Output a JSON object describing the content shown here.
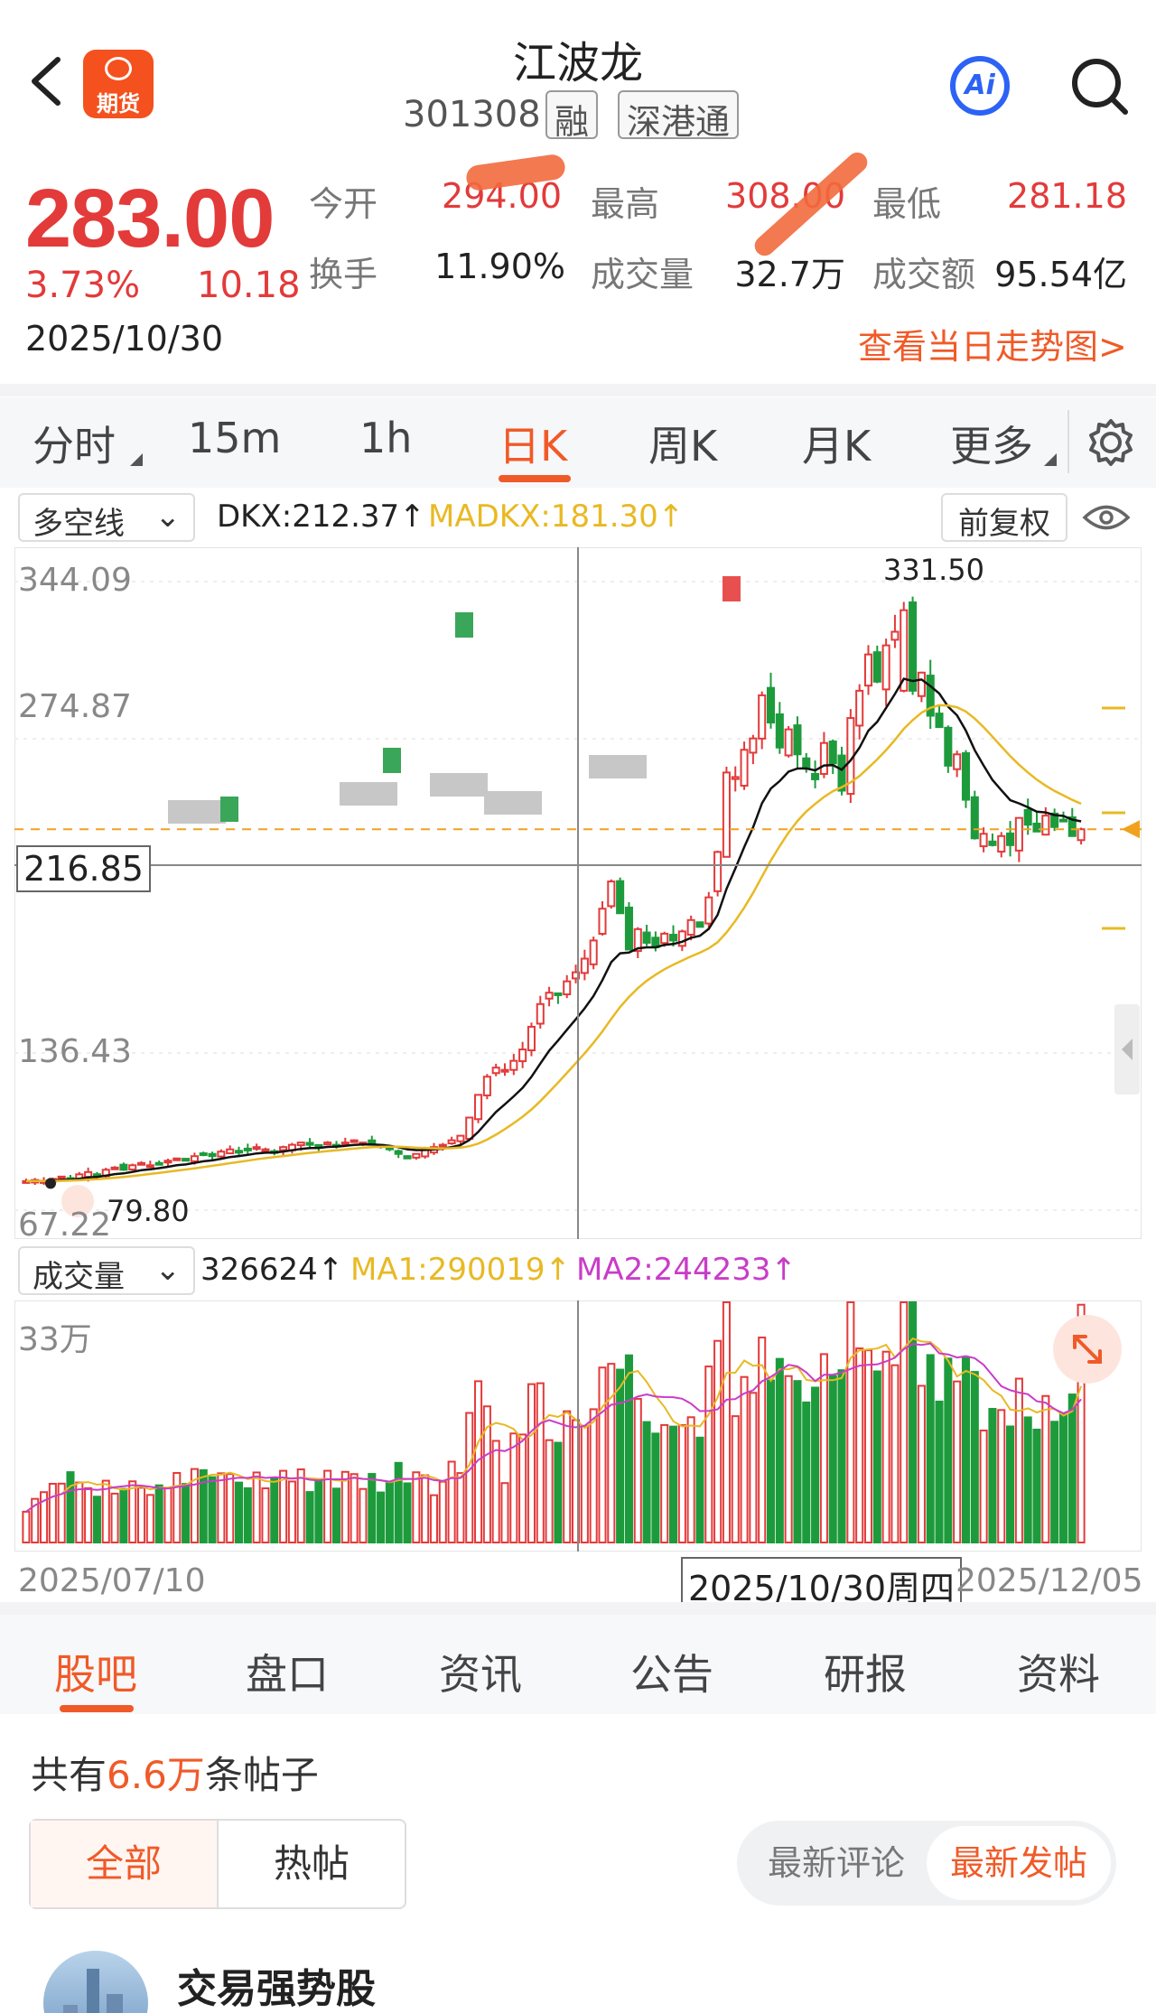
{
  "header": {
    "stock_name": "江波龙",
    "stock_code": "301308",
    "tags": [
      "融",
      "深港通"
    ],
    "logo_text": "期货",
    "ai_label": "Ai",
    "icons": {
      "back": "chevron-left-icon",
      "search": "search-icon",
      "ai": "ai-assistant-icon"
    }
  },
  "quote": {
    "price": "283.00",
    "change_pct": "3.73%",
    "change_amt": "10.18",
    "date": "2025/10/30",
    "fields": [
      {
        "label": "今开",
        "value": "294.00",
        "color": "#e33a3a"
      },
      {
        "label": "最高",
        "value": "308.00",
        "color": "#e33a3a"
      },
      {
        "label": "最低",
        "value": "281.18",
        "color": "#e33a3a"
      },
      {
        "label": "换手",
        "value": "11.90%",
        "color": "#222222"
      },
      {
        "label": "成交量",
        "value": "32.7万",
        "color": "#222222"
      },
      {
        "label": "成交额",
        "value": "95.54亿",
        "color": "#222222"
      }
    ],
    "intraday_link": "查看当日走势图>"
  },
  "period_tabs": {
    "items": [
      "分时",
      "15m",
      "1h",
      "日K",
      "周K",
      "月K",
      "更多"
    ],
    "active": "日K"
  },
  "kline": {
    "indicator_select": "多空线",
    "dkx_text": "DKX:212.37↑",
    "madkx_text": "MADKX:181.30↑",
    "adjust_button": "前复权",
    "axis_labels": [
      "344.09",
      "274.87",
      "136.43",
      "67.22"
    ],
    "crosshair_price": "216.85",
    "high_marker": "331.50",
    "low_marker": "79.80"
  },
  "volume": {
    "indicator_select": "成交量",
    "vol_text": "326624↑",
    "ma1_text": "MA1:290019↑",
    "ma2_text": "MA2:244233↑",
    "axis_max": "33万",
    "date_start": "2025/07/10",
    "date_cursor": "2025/10/30周四",
    "date_end": "2025/12/05"
  },
  "chart_data": {
    "type": "candlestick",
    "date_range": [
      "2025/07/10",
      "2025/12/05"
    ],
    "y_ticks": [
      344.09,
      274.87,
      136.43,
      67.22
    ],
    "dkx_last": 212.37,
    "madkx_last": 181.3,
    "period_high": 331.5,
    "period_low": 79.8,
    "closes": [
      80,
      80.5,
      80,
      81,
      82,
      81,
      83,
      84,
      83,
      85,
      86,
      85,
      87,
      88,
      87,
      88,
      89,
      90,
      89,
      91,
      92,
      91,
      93,
      94,
      93,
      94,
      95,
      94,
      93,
      95,
      96,
      97,
      96,
      95,
      97,
      96,
      97,
      98,
      97,
      96,
      95,
      94,
      92,
      90,
      92,
      94,
      95,
      96,
      98,
      100,
      108,
      118,
      126,
      130,
      129,
      133,
      138,
      148,
      158,
      163,
      162,
      168,
      172,
      178,
      186,
      200,
      212,
      198,
      182,
      191,
      185,
      183,
      189,
      186,
      190,
      195,
      192,
      205,
      225,
      260,
      258,
      270,
      275,
      294,
      282,
      271,
      279,
      268,
      262,
      257,
      273,
      264,
      252,
      284,
      296,
      312,
      300,
      316,
      322,
      331.5,
      296,
      304,
      285,
      280,
      263,
      268,
      248,
      231,
      233,
      228,
      232,
      228,
      240,
      237,
      234,
      241,
      236,
      239,
      232,
      235
    ],
    "volume_ma1_last": 290019,
    "volume_ma2_last": 244233,
    "volume_last": 326624,
    "volume_max_label": "33万"
  },
  "bottom_tabs": {
    "items": [
      "股吧",
      "盘口",
      "资讯",
      "公告",
      "研报",
      "资料"
    ],
    "active": "股吧"
  },
  "posts": {
    "count_prefix": "共有",
    "count_value": "6.6万",
    "count_suffix": "条帖子",
    "filter": [
      "全部",
      "热帖"
    ],
    "sort": [
      "最新评论",
      "最新发帖"
    ],
    "first_post_title": "交易强势股"
  },
  "colors": {
    "up": "#e33a3a",
    "down": "#1d9b3c",
    "accent": "#f05a28",
    "dkx": "#111111",
    "madkx": "#e8b923",
    "ma2": "#c93cc9"
  }
}
